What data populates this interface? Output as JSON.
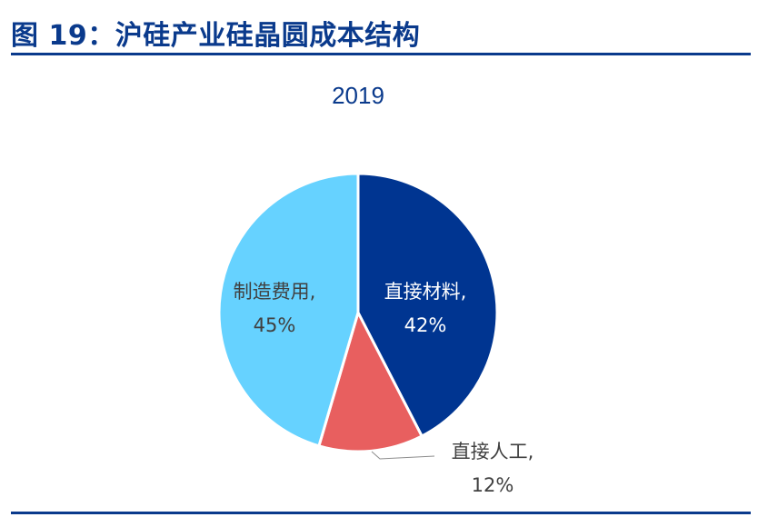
{
  "figure": {
    "title": "图 19：沪硅产业硅晶圆成本结构"
  },
  "colors": {
    "title": "#0a3a8c",
    "rule": "#0a3a8c"
  },
  "chart_data": {
    "type": "pie",
    "title": "2019",
    "start_angle_deg": 0,
    "direction": "clockwise",
    "slices": [
      {
        "label": "直接材料",
        "value": 42,
        "display": "42%",
        "color": "#003591",
        "label_color": "#ffffff",
        "label_inside": true
      },
      {
        "label": "直接人工",
        "value": 12,
        "display": "12%",
        "color": "#e85f5f",
        "label_color": "#404040",
        "label_inside": false
      },
      {
        "label": "制造费用",
        "value": 45,
        "display": "45%",
        "color": "#66d2ff",
        "label_color": "#404040",
        "label_inside": true
      }
    ]
  }
}
